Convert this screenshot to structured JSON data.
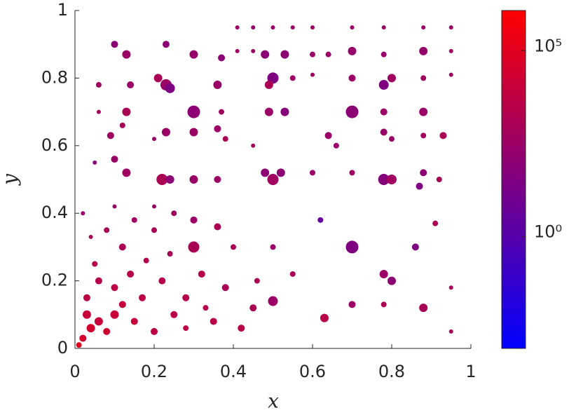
{
  "chart_data": {
    "type": "scatter",
    "x_label": "x",
    "y_label": "y",
    "xlim": [
      0,
      1
    ],
    "ylim": [
      0,
      1
    ],
    "xticks": [
      0,
      0.2,
      0.4,
      0.6,
      0.8,
      1
    ],
    "yticks": [
      0,
      0.2,
      0.4,
      0.6,
      0.8,
      1
    ],
    "grid": false,
    "colorbar": {
      "log": true,
      "clim": [
        0.001,
        1200000
      ],
      "colormap": [
        "#0000ff",
        "#ff0000"
      ],
      "ticks": [
        {
          "value": 1,
          "label": "10⁰"
        },
        {
          "value": 100000,
          "label": "10⁵"
        }
      ]
    },
    "x": [
      0.1,
      0.13,
      0.23,
      0.3,
      0.37,
      0.41,
      0.45,
      0.5,
      0.55,
      0.6,
      0.7,
      0.78,
      0.88,
      0.95,
      0.41,
      0.45,
      0.48,
      0.53,
      0.6,
      0.64,
      0.7,
      0.78,
      0.88,
      0.95,
      0.06,
      0.14,
      0.21,
      0.23,
      0.24,
      0.36,
      0.5,
      0.49,
      0.55,
      0.6,
      0.7,
      0.78,
      0.8,
      0.88,
      0.95,
      0.06,
      0.13,
      0.3,
      0.37,
      0.49,
      0.53,
      0.7,
      0.78,
      0.88,
      0.09,
      0.12,
      0.2,
      0.23,
      0.3,
      0.36,
      0.38,
      0.45,
      0.64,
      0.66,
      0.78,
      0.8,
      0.88,
      0.93,
      0.05,
      0.1,
      0.13,
      0.22,
      0.24,
      0.3,
      0.36,
      0.5,
      0.48,
      0.52,
      0.6,
      0.7,
      0.78,
      0.8,
      0.88,
      0.87,
      0.92,
      0.62,
      0.7,
      0.86,
      0.91,
      0.78,
      0.8,
      0.63,
      0.7,
      0.78,
      0.88,
      0.95,
      0.95,
      0.5,
      0.5,
      0.55,
      0.02,
      0.04,
      0.06,
      0.08,
      0.1,
      0.12,
      0.15,
      0.17,
      0.2,
      0.22,
      0.25,
      0.28,
      0.3,
      0.32,
      0.35,
      0.38,
      0.4,
      0.05,
      0.08,
      0.12,
      0.15,
      0.2,
      0.25,
      0.3,
      0.36,
      0.03,
      0.06,
      0.1,
      0.14,
      0.18,
      0.24,
      0.28,
      0.33,
      0.42,
      0.45,
      0.46,
      0.02,
      0.04,
      0.1,
      0.2,
      0.01,
      0.03
    ],
    "y": [
      0.9,
      0.87,
      0.9,
      0.87,
      0.86,
      0.95,
      0.95,
      0.95,
      0.95,
      0.95,
      0.95,
      0.95,
      0.95,
      0.95,
      0.88,
      0.88,
      0.87,
      0.87,
      0.87,
      0.87,
      0.88,
      0.87,
      0.88,
      0.88,
      0.78,
      0.78,
      0.8,
      0.78,
      0.77,
      0.78,
      0.8,
      0.78,
      0.8,
      0.81,
      0.8,
      0.78,
      0.8,
      0.8,
      0.81,
      0.7,
      0.7,
      0.7,
      0.7,
      0.7,
      0.7,
      0.7,
      0.7,
      0.7,
      0.63,
      0.66,
      0.62,
      0.64,
      0.64,
      0.65,
      0.62,
      0.6,
      0.63,
      0.6,
      0.64,
      0.62,
      0.63,
      0.63,
      0.55,
      0.56,
      0.52,
      0.5,
      0.5,
      0.5,
      0.5,
      0.5,
      0.52,
      0.52,
      0.52,
      0.52,
      0.5,
      0.5,
      0.52,
      0.48,
      0.5,
      0.38,
      0.3,
      0.3,
      0.37,
      0.22,
      0.2,
      0.09,
      0.13,
      0.13,
      0.12,
      0.18,
      0.05,
      0.3,
      0.14,
      0.22,
      0.03,
      0.06,
      0.08,
      0.05,
      0.1,
      0.13,
      0.08,
      0.15,
      0.05,
      0.2,
      0.1,
      0.15,
      0.3,
      0.22,
      0.08,
      0.18,
      0.3,
      0.25,
      0.35,
      0.3,
      0.38,
      0.35,
      0.4,
      0.38,
      0.36,
      0.15,
      0.2,
      0.18,
      0.22,
      0.26,
      0.28,
      0.06,
      0.12,
      0.06,
      0.12,
      0.2,
      0.4,
      0.33,
      0.42,
      0.42,
      0.01,
      0.1
    ],
    "sizes": [
      5,
      6,
      5,
      6,
      5,
      3,
      3,
      3,
      3,
      3,
      3,
      3,
      3,
      3,
      3,
      3,
      6,
      6,
      4,
      4,
      6,
      4,
      6,
      3,
      4,
      5,
      6,
      8,
      7,
      6,
      8,
      6,
      4,
      3,
      5,
      7,
      6,
      4,
      3,
      3,
      6,
      9,
      4,
      6,
      6,
      9,
      5,
      6,
      5,
      4,
      3,
      6,
      6,
      5,
      4,
      3,
      5,
      4,
      5,
      4,
      4,
      5,
      3,
      5,
      6,
      8,
      6,
      6,
      5,
      8,
      6,
      6,
      4,
      4,
      8,
      7,
      5,
      5,
      4,
      4,
      9,
      5,
      4,
      6,
      6,
      6,
      5,
      4,
      6,
      3,
      3,
      4,
      7,
      4,
      5,
      6,
      6,
      5,
      6,
      5,
      5,
      5,
      5,
      5,
      5,
      5,
      8,
      5,
      5,
      5,
      4,
      4,
      4,
      5,
      4,
      4,
      4,
      5,
      5,
      5,
      5,
      5,
      5,
      4,
      4,
      4,
      4,
      5,
      5,
      4,
      3,
      3,
      3,
      3,
      4,
      6
    ],
    "colors": [
      100,
      300,
      100,
      200,
      100,
      300,
      300,
      300,
      300,
      300,
      300,
      300,
      300,
      300,
      500,
      500,
      100,
      100,
      300,
      300,
      200,
      300,
      200,
      500,
      500,
      300,
      1000,
      300,
      30,
      300,
      30,
      1000,
      300,
      500,
      300,
      30,
      500,
      500,
      500,
      500,
      1000,
      100,
      500,
      300,
      50,
      100,
      300,
      300,
      500,
      1000,
      300,
      300,
      300,
      300,
      1000,
      500,
      300,
      300,
      300,
      300,
      500,
      1000,
      100,
      300,
      500,
      1000,
      100,
      300,
      300,
      500,
      100,
      100,
      300,
      500,
      50,
      500,
      100,
      30,
      1000,
      3,
      30,
      30,
      1000,
      300,
      100,
      3000,
      300,
      1000,
      1000,
      1000,
      1000,
      300,
      300,
      1000,
      30000,
      30000,
      10000,
      20000,
      10000,
      10000,
      10000,
      5000,
      5000,
      3000,
      3000,
      3000,
      1000,
      3000,
      3000,
      1000,
      1000,
      3000,
      1000,
      1000,
      500,
      1000,
      500,
      300,
      1000,
      5000,
      3000,
      5000,
      3000,
      3000,
      1000,
      5000,
      3000,
      3000,
      1000,
      1000,
      300,
      1000,
      300,
      300,
      100000,
      10000
    ]
  }
}
